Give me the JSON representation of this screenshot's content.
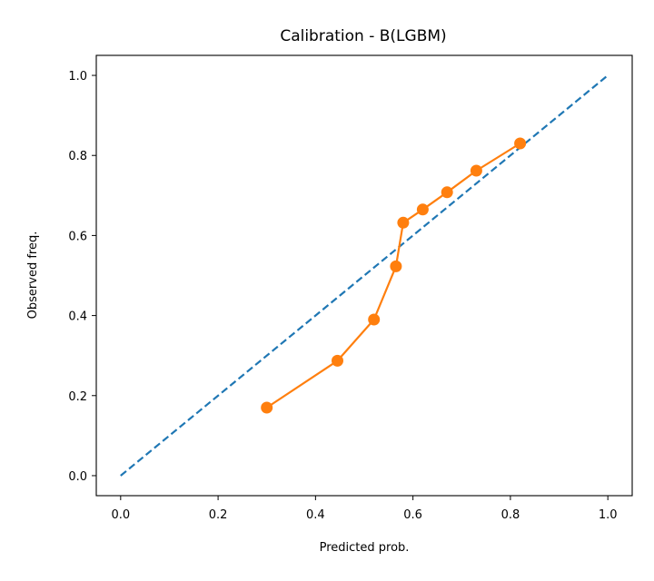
{
  "chart_data": {
    "type": "line",
    "title": "Calibration - B(LGBM)",
    "xlabel": "Predicted prob.",
    "ylabel": "Observed freq.",
    "xlim": [
      -0.05,
      1.05
    ],
    "ylim": [
      -0.05,
      1.05
    ],
    "xticks": [
      "0.0",
      "0.2",
      "0.4",
      "0.6",
      "0.8",
      "1.0"
    ],
    "yticks": [
      "0.0",
      "0.2",
      "0.4",
      "0.6",
      "0.8",
      "1.0"
    ],
    "grid": false,
    "series": [
      {
        "style": "dashed",
        "color": "#1f77b4",
        "x": [
          0.0,
          1.0
        ],
        "y": [
          0.0,
          1.0
        ]
      },
      {
        "style": "line-marker",
        "color": "#ff7f0e",
        "x": [
          0.3,
          0.445,
          0.52,
          0.565,
          0.58,
          0.62,
          0.67,
          0.73,
          0.82
        ],
        "y": [
          0.17,
          0.287,
          0.39,
          0.523,
          0.632,
          0.665,
          0.708,
          0.762,
          0.83
        ]
      }
    ]
  }
}
